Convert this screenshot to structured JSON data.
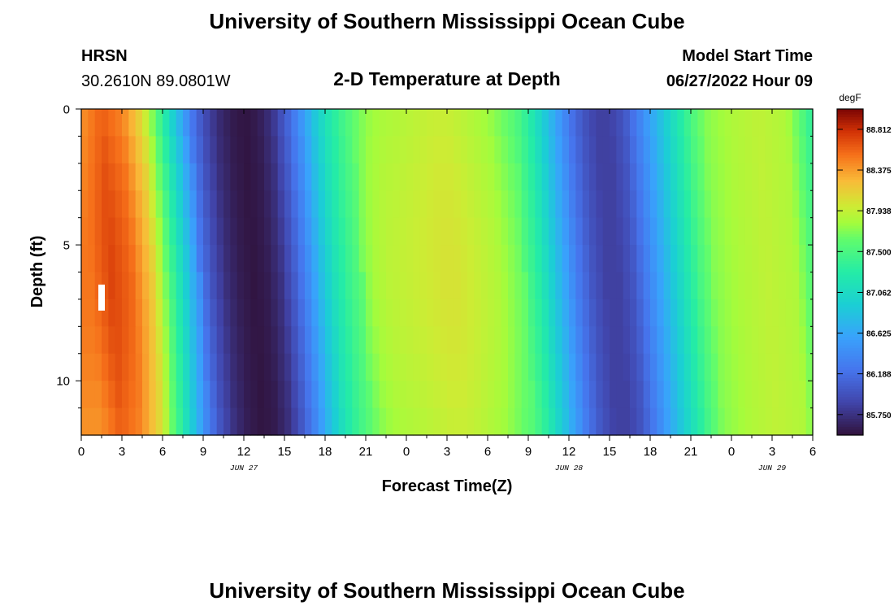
{
  "header": {
    "title": "University of Southern Mississippi Ocean Cube",
    "station": "HRSN",
    "coords": "30.2610N  89.0801W",
    "plot_title": "2-D Temperature at Depth",
    "start_label": "Model Start Time",
    "start_value": "06/27/2022 Hour 09"
  },
  "footer": {
    "title": "University of Southern Mississippi Ocean Cube"
  },
  "chart_data": {
    "type": "heatmap",
    "xlabel": "Forecast Time(Z)",
    "ylabel": "Depth (ft)",
    "x_ticks": [
      "0",
      "3",
      "6",
      "9",
      "12",
      "15",
      "18",
      "21",
      "0",
      "3",
      "6",
      "9",
      "12",
      "15",
      "18",
      "21",
      "0",
      "3",
      "6"
    ],
    "date_labels": [
      {
        "text": "JUN 27",
        "at_hour": 12
      },
      {
        "text": "JUN 28",
        "at_hour": 36
      },
      {
        "text": "JUN 29",
        "at_hour": 51
      }
    ],
    "xlim": [
      0,
      54
    ],
    "y_ticks": [
      0,
      5,
      10
    ],
    "ylim": [
      0,
      12
    ],
    "y_inverted": true,
    "colorbar": {
      "unit": "degF",
      "ticks": [
        "88.812",
        "88.375",
        "87.938",
        "87.500",
        "87.062",
        "86.625",
        "86.188",
        "85.750"
      ],
      "min": 85.53,
      "max": 89.03
    },
    "time_profile_degF": {
      "hours": [
        0,
        1.5,
        3,
        4.5,
        6,
        7,
        8,
        9,
        10,
        11,
        12,
        13,
        14,
        15,
        16,
        17,
        18,
        19,
        20,
        21,
        22,
        24,
        26,
        27,
        28,
        30,
        32,
        33,
        34,
        35,
        36,
        37,
        38,
        39,
        40,
        41,
        42,
        43,
        44,
        45,
        46,
        48,
        50,
        52,
        53,
        54
      ],
      "values": [
        88.4,
        88.6,
        88.45,
        88.05,
        87.3,
        86.8,
        86.3,
        85.95,
        85.72,
        85.6,
        85.55,
        85.6,
        85.75,
        86.05,
        86.4,
        86.8,
        87.15,
        87.4,
        87.6,
        87.75,
        87.82,
        87.88,
        87.95,
        87.95,
        87.9,
        87.78,
        87.55,
        87.3,
        86.95,
        86.6,
        86.25,
        86.0,
        85.85,
        85.85,
        86.0,
        86.3,
        86.6,
        86.9,
        87.2,
        87.5,
        87.72,
        87.85,
        87.92,
        87.85,
        87.6,
        87.3
      ]
    },
    "marker": {
      "hour": 1.5,
      "depth_ft": 7
    }
  }
}
